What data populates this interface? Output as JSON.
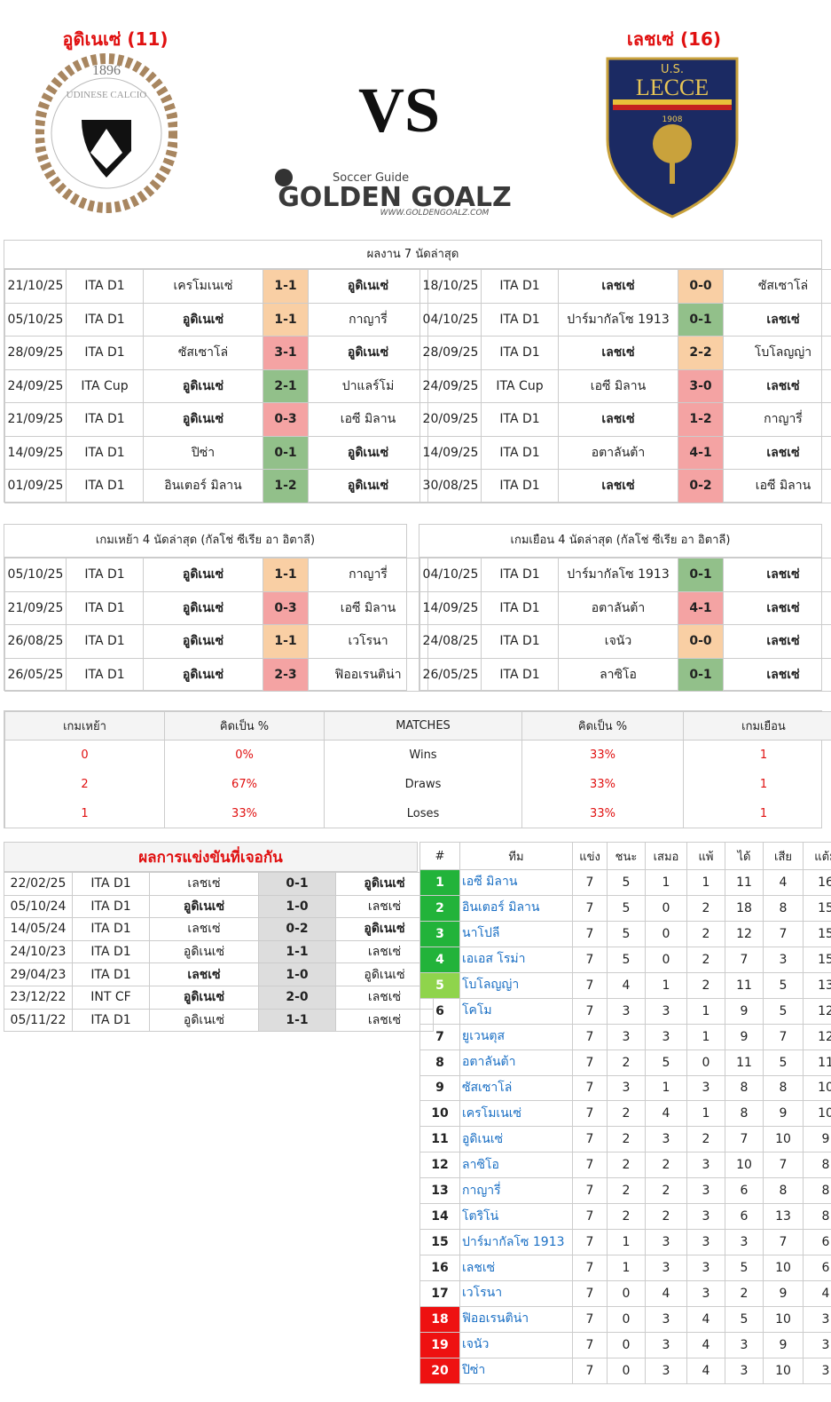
{
  "header": {
    "home_team": "อูดิเนเซ่ (11)",
    "away_team": "เลชเซ่ (16)",
    "vs": "VS",
    "home_logo": {
      "name": "UDINESE CALCIO",
      "year": "1896"
    },
    "away_logo": {
      "name": "LECCE",
      "prefix": "U.S.",
      "year": "1908"
    },
    "site_logo": {
      "tagline": "Soccer Guide",
      "name": "GOLDEN GOALZ",
      "url": "WWW.GOLDENGOALZ.COM"
    }
  },
  "recent": {
    "title": "ผลงาน 7 นัดล่าสุด",
    "home": [
      {
        "cells": [
          "21/10/25",
          "ITA D1",
          "เครโมเนเซ่",
          "1-1",
          "อูดิเนเซ่"
        ],
        "bold": 4,
        "color": "#f9cfa4"
      },
      {
        "cells": [
          "05/10/25",
          "ITA D1",
          "อูดิเนเซ่",
          "1-1",
          "กาญารี่"
        ],
        "bold": 2,
        "color": "#f9cfa4"
      },
      {
        "cells": [
          "28/09/25",
          "ITA D1",
          "ซัสเซาโล่",
          "3-1",
          "อูดิเนเซ่"
        ],
        "bold": 4,
        "color": "#f4a3a3"
      },
      {
        "cells": [
          "24/09/25",
          "ITA Cup",
          "อูดิเนเซ่",
          "2-1",
          "ปาแลร์โม่"
        ],
        "bold": 2,
        "color": "#92c08a"
      },
      {
        "cells": [
          "21/09/25",
          "ITA D1",
          "อูดิเนเซ่",
          "0-3",
          "เอซี มิลาน"
        ],
        "bold": 2,
        "color": "#f4a3a3"
      },
      {
        "cells": [
          "14/09/25",
          "ITA D1",
          "ปิซ่า",
          "0-1",
          "อูดิเนเซ่"
        ],
        "bold": 4,
        "color": "#92c08a"
      },
      {
        "cells": [
          "01/09/25",
          "ITA D1",
          "อินเตอร์ มิลาน",
          "1-2",
          "อูดิเนเซ่"
        ],
        "bold": 4,
        "color": "#92c08a"
      }
    ],
    "away": [
      {
        "cells": [
          "18/10/25",
          "ITA D1",
          "เลชเซ่",
          "0-0",
          "ซัสเซาโล่"
        ],
        "bold": 2,
        "color": "#f9cfa4"
      },
      {
        "cells": [
          "04/10/25",
          "ITA D1",
          "ปาร์มากัลโซ 1913",
          "0-1",
          "เลชเซ่"
        ],
        "bold": 4,
        "color": "#92c08a"
      },
      {
        "cells": [
          "28/09/25",
          "ITA D1",
          "เลชเซ่",
          "2-2",
          "โบโลญญ่า"
        ],
        "bold": 2,
        "color": "#f9cfa4"
      },
      {
        "cells": [
          "24/09/25",
          "ITA Cup",
          "เอซี มิลาน",
          "3-0",
          "เลชเซ่"
        ],
        "bold": 4,
        "color": "#f4a3a3"
      },
      {
        "cells": [
          "20/09/25",
          "ITA D1",
          "เลชเซ่",
          "1-2",
          "กาญารี่"
        ],
        "bold": 2,
        "color": "#f4a3a3"
      },
      {
        "cells": [
          "14/09/25",
          "ITA D1",
          "อตาลันต้า",
          "4-1",
          "เลชเซ่"
        ],
        "bold": 4,
        "color": "#f4a3a3"
      },
      {
        "cells": [
          "30/08/25",
          "ITA D1",
          "เลชเซ่",
          "0-2",
          "เอซี มิลาน"
        ],
        "bold": 2,
        "color": "#f4a3a3"
      }
    ]
  },
  "venue": {
    "home_title": "เกมเหย้า 4 นัดล่าสุด (กัลโช่ ซีเรีย อา อิตาลี)",
    "away_title": "เกมเยือน 4 นัดล่าสุด (กัลโช่ ซีเรีย อา อิตาลี)",
    "home": [
      {
        "cells": [
          "05/10/25",
          "ITA D1",
          "อูดิเนเซ่",
          "1-1",
          "กาญารี่"
        ],
        "bold": 2,
        "color": "#f9cfa4"
      },
      {
        "cells": [
          "21/09/25",
          "ITA D1",
          "อูดิเนเซ่",
          "0-3",
          "เอซี มิลาน"
        ],
        "bold": 2,
        "color": "#f4a3a3"
      },
      {
        "cells": [
          "26/08/25",
          "ITA D1",
          "อูดิเนเซ่",
          "1-1",
          "เวโรนา"
        ],
        "bold": 2,
        "color": "#f9cfa4"
      },
      {
        "cells": [
          "26/05/25",
          "ITA D1",
          "อูดิเนเซ่",
          "2-3",
          "ฟิออเรนติน่า"
        ],
        "bold": 2,
        "color": "#f4a3a3"
      }
    ],
    "away": [
      {
        "cells": [
          "04/10/25",
          "ITA D1",
          "ปาร์มากัลโซ 1913",
          "0-1",
          "เลชเซ่"
        ],
        "bold": 4,
        "color": "#92c08a"
      },
      {
        "cells": [
          "14/09/25",
          "ITA D1",
          "อตาลันต้า",
          "4-1",
          "เลชเซ่"
        ],
        "bold": 4,
        "color": "#f4a3a3"
      },
      {
        "cells": [
          "24/08/25",
          "ITA D1",
          "เจนัว",
          "0-0",
          "เลชเซ่"
        ],
        "bold": 4,
        "color": "#f9cfa4"
      },
      {
        "cells": [
          "26/05/25",
          "ITA D1",
          "ลาซิโอ",
          "0-1",
          "เลชเซ่"
        ],
        "bold": 4,
        "color": "#92c08a"
      }
    ]
  },
  "stats": {
    "header": [
      "เกมเหย้า",
      "คิดเป็น %",
      "MATCHES",
      "คิดเป็น %",
      "เกมเยือน"
    ],
    "rows": [
      [
        "0",
        "0%",
        "Wins",
        "33%",
        "1"
      ],
      [
        "2",
        "67%",
        "Draws",
        "33%",
        "1"
      ],
      [
        "1",
        "33%",
        "Loses",
        "33%",
        "1"
      ]
    ]
  },
  "h2h": {
    "title": "ผลการแข่งขันที่เจอกัน",
    "rows": [
      {
        "cells": [
          "22/02/25",
          "ITA D1",
          "เลชเซ่",
          "0-1",
          "อูดิเนเซ่"
        ],
        "bold": 4
      },
      {
        "cells": [
          "05/10/24",
          "ITA D1",
          "อูดิเนเซ่",
          "1-0",
          "เลชเซ่"
        ],
        "bold": 2
      },
      {
        "cells": [
          "14/05/24",
          "ITA D1",
          "เลชเซ่",
          "0-2",
          "อูดิเนเซ่"
        ],
        "bold": 4
      },
      {
        "cells": [
          "24/10/23",
          "ITA D1",
          "อูดิเนเซ่",
          "1-1",
          "เลชเซ่"
        ],
        "bold": null
      },
      {
        "cells": [
          "29/04/23",
          "ITA D1",
          "เลชเซ่",
          "1-0",
          "อูดิเนเซ่"
        ],
        "bold": 2
      },
      {
        "cells": [
          "23/12/22",
          "INT CF",
          "อูดิเนเซ่",
          "2-0",
          "เลชเซ่"
        ],
        "bold": 2
      },
      {
        "cells": [
          "05/11/22",
          "ITA D1",
          "อูดิเนเซ่",
          "1-1",
          "เลชเซ่"
        ],
        "bold": null
      }
    ]
  },
  "standings": {
    "header": [
      "#",
      "ทีม",
      "แข่ง",
      "ชนะ",
      "เสมอ",
      "แพ้",
      "ได้",
      "เสีย",
      "แต้ม"
    ],
    "rows": [
      {
        "cells": [
          "1",
          "เอซี มิลาน",
          "7",
          "5",
          "1",
          "1",
          "11",
          "4",
          "16"
        ],
        "color": "#22b33a"
      },
      {
        "cells": [
          "2",
          "อินเตอร์ มิลาน",
          "7",
          "5",
          "0",
          "2",
          "18",
          "8",
          "15"
        ],
        "color": "#22b33a"
      },
      {
        "cells": [
          "3",
          "นาโปลี",
          "7",
          "5",
          "0",
          "2",
          "12",
          "7",
          "15"
        ],
        "color": "#22b33a"
      },
      {
        "cells": [
          "4",
          "เอเอส โรม่า",
          "7",
          "5",
          "0",
          "2",
          "7",
          "3",
          "15"
        ],
        "color": "#22b33a"
      },
      {
        "cells": [
          "5",
          "โบโลญญ่า",
          "7",
          "4",
          "1",
          "2",
          "11",
          "5",
          "13"
        ],
        "color": "#8fd44c"
      },
      {
        "cells": [
          "6",
          "โคโม",
          "7",
          "3",
          "3",
          "1",
          "9",
          "5",
          "12"
        ],
        "color": null
      },
      {
        "cells": [
          "7",
          "ยูเวนตุส",
          "7",
          "3",
          "3",
          "1",
          "9",
          "7",
          "12"
        ],
        "color": null
      },
      {
        "cells": [
          "8",
          "อตาลันต้า",
          "7",
          "2",
          "5",
          "0",
          "11",
          "5",
          "11"
        ],
        "color": null
      },
      {
        "cells": [
          "9",
          "ซัสเซาโล่",
          "7",
          "3",
          "1",
          "3",
          "8",
          "8",
          "10"
        ],
        "color": null
      },
      {
        "cells": [
          "10",
          "เครโมเนเซ่",
          "7",
          "2",
          "4",
          "1",
          "8",
          "9",
          "10"
        ],
        "color": null
      },
      {
        "cells": [
          "11",
          "อูดิเนเซ่",
          "7",
          "2",
          "3",
          "2",
          "7",
          "10",
          "9"
        ],
        "color": null
      },
      {
        "cells": [
          "12",
          "ลาซิโอ",
          "7",
          "2",
          "2",
          "3",
          "10",
          "7",
          "8"
        ],
        "color": null
      },
      {
        "cells": [
          "13",
          "กาญารี่",
          "7",
          "2",
          "2",
          "3",
          "6",
          "8",
          "8"
        ],
        "color": null
      },
      {
        "cells": [
          "14",
          "โตริโน่",
          "7",
          "2",
          "2",
          "3",
          "6",
          "13",
          "8"
        ],
        "color": null
      },
      {
        "cells": [
          "15",
          "ปาร์มากัลโซ 1913",
          "7",
          "1",
          "3",
          "3",
          "3",
          "7",
          "6"
        ],
        "color": null
      },
      {
        "cells": [
          "16",
          "เลชเซ่",
          "7",
          "1",
          "3",
          "3",
          "5",
          "10",
          "6"
        ],
        "color": null
      },
      {
        "cells": [
          "17",
          "เวโรนา",
          "7",
          "0",
          "4",
          "3",
          "2",
          "9",
          "4"
        ],
        "color": null
      },
      {
        "cells": [
          "18",
          "ฟิออเรนติน่า",
          "7",
          "0",
          "3",
          "4",
          "5",
          "10",
          "3"
        ],
        "color": "#ee1111"
      },
      {
        "cells": [
          "19",
          "เจนัว",
          "7",
          "0",
          "3",
          "4",
          "3",
          "9",
          "3"
        ],
        "color": "#ee1111"
      },
      {
        "cells": [
          "20",
          "ปิซ่า",
          "7",
          "0",
          "3",
          "4",
          "3",
          "10",
          "3"
        ],
        "color": "#ee1111"
      }
    ]
  }
}
